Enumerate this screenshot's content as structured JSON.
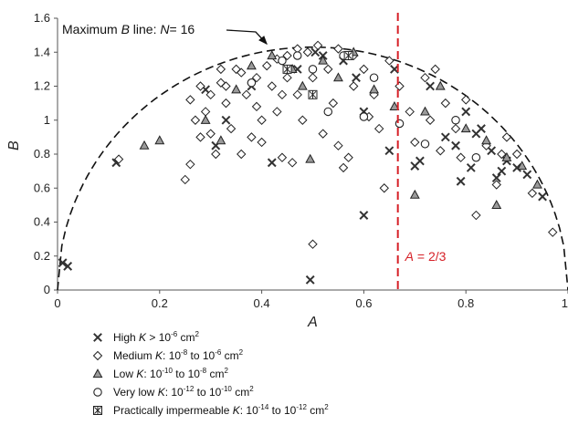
{
  "chart_data": {
    "type": "scatter",
    "xlabel": "A",
    "ylabel": "B",
    "xlim": [
      0,
      1
    ],
    "ylim": [
      0,
      1.6
    ],
    "x_ticks": [
      "0",
      "0.2",
      "0.4",
      "0.6",
      "0.8",
      "1"
    ],
    "y_ticks": [
      "0",
      "0.2",
      "0.4",
      "0.6",
      "0.8",
      "1",
      "1.2",
      "1.4",
      "1.6"
    ],
    "grid": false,
    "legend_position": "bottom-left",
    "max_line": {
      "label_prefix": "Maximum ",
      "label_var": "B",
      "label_mid": " line: ",
      "label_n": "N",
      "label_suffix": "= 16",
      "style": "dashed",
      "color": "#111111",
      "peak_B": 1.43
    },
    "threshold_line": {
      "x": 0.6667,
      "label_var": "A",
      "label_rest": " = 2/3",
      "style": "dashed",
      "color": "#d62027"
    },
    "series": [
      {
        "name_prefix": "High ",
        "name_var": "K",
        "name_rel": " > 10",
        "name_exp1": "-6",
        "name_tail": " cm",
        "name_exp2": "2",
        "marker": "x",
        "points": [
          [
            0.01,
            0.16
          ],
          [
            0.02,
            0.14
          ],
          [
            0.115,
            0.75
          ],
          [
            0.31,
            0.85
          ],
          [
            0.33,
            1.0
          ],
          [
            0.42,
            0.75
          ],
          [
            0.47,
            1.3
          ],
          [
            0.495,
            0.06
          ],
          [
            0.505,
            1.4
          ],
          [
            0.52,
            1.38
          ],
          [
            0.56,
            1.35
          ],
          [
            0.585,
            1.25
          ],
          [
            0.6,
            0.44
          ],
          [
            0.6,
            1.05
          ],
          [
            0.65,
            0.82
          ],
          [
            0.66,
            1.3
          ],
          [
            0.7,
            0.73
          ],
          [
            0.71,
            0.76
          ],
          [
            0.73,
            1.2
          ],
          [
            0.76,
            0.9
          ],
          [
            0.78,
            0.85
          ],
          [
            0.79,
            0.64
          ],
          [
            0.8,
            1.05
          ],
          [
            0.81,
            0.72
          ],
          [
            0.82,
            0.92
          ],
          [
            0.83,
            0.95
          ],
          [
            0.85,
            0.82
          ],
          [
            0.86,
            0.66
          ],
          [
            0.87,
            0.7
          ],
          [
            0.88,
            0.76
          ],
          [
            0.9,
            0.72
          ],
          [
            0.92,
            0.68
          ],
          [
            0.95,
            0.55
          ],
          [
            0.29,
            1.18
          ],
          [
            0.38,
            1.2
          ]
        ]
      },
      {
        "name_prefix": "Medium ",
        "name_var": "K",
        "name_rel": ": 10",
        "name_exp1": "-8",
        "name_tail": " to 10",
        "name_exp2": "-6",
        "name_tail2": " cm",
        "name_exp3": "2",
        "marker": "diamond",
        "points": [
          [
            0.12,
            0.77
          ],
          [
            0.25,
            0.65
          ],
          [
            0.26,
            0.74
          ],
          [
            0.26,
            1.12
          ],
          [
            0.27,
            1.0
          ],
          [
            0.28,
            0.9
          ],
          [
            0.3,
            1.15
          ],
          [
            0.3,
            0.92
          ],
          [
            0.31,
            0.8
          ],
          [
            0.32,
            1.22
          ],
          [
            0.33,
            1.1
          ],
          [
            0.34,
            0.95
          ],
          [
            0.35,
            1.3
          ],
          [
            0.36,
            0.8
          ],
          [
            0.37,
            1.15
          ],
          [
            0.38,
            0.9
          ],
          [
            0.39,
            1.25
          ],
          [
            0.4,
            1.0
          ],
          [
            0.4,
            0.87
          ],
          [
            0.41,
            1.32
          ],
          [
            0.42,
            1.2
          ],
          [
            0.43,
            1.05
          ],
          [
            0.44,
            0.78
          ],
          [
            0.45,
            1.38
          ],
          [
            0.45,
            1.25
          ],
          [
            0.46,
            0.75
          ],
          [
            0.47,
            1.15
          ],
          [
            0.48,
            1.0
          ],
          [
            0.49,
            1.4
          ],
          [
            0.5,
            0.27
          ],
          [
            0.5,
            1.25
          ],
          [
            0.52,
            0.92
          ],
          [
            0.53,
            1.3
          ],
          [
            0.54,
            1.1
          ],
          [
            0.55,
            1.42
          ],
          [
            0.56,
            0.72
          ],
          [
            0.57,
            0.78
          ],
          [
            0.58,
            1.2
          ],
          [
            0.6,
            1.3
          ],
          [
            0.62,
            1.15
          ],
          [
            0.63,
            0.95
          ],
          [
            0.64,
            0.6
          ],
          [
            0.65,
            1.35
          ],
          [
            0.67,
            1.2
          ],
          [
            0.69,
            1.05
          ],
          [
            0.7,
            0.87
          ],
          [
            0.72,
            1.25
          ],
          [
            0.73,
            1.0
          ],
          [
            0.75,
            0.82
          ],
          [
            0.76,
            1.1
          ],
          [
            0.78,
            0.95
          ],
          [
            0.8,
            1.12
          ],
          [
            0.82,
            0.44
          ],
          [
            0.84,
            0.85
          ],
          [
            0.86,
            0.62
          ],
          [
            0.88,
            0.9
          ],
          [
            0.9,
            0.8
          ],
          [
            0.93,
            0.57
          ],
          [
            0.97,
            0.34
          ],
          [
            0.29,
            1.05
          ],
          [
            0.33,
            1.2
          ],
          [
            0.36,
            1.28
          ],
          [
            0.43,
            1.36
          ],
          [
            0.47,
            1.42
          ],
          [
            0.51,
            1.44
          ],
          [
            0.58,
            1.38
          ],
          [
            0.61,
            1.02
          ],
          [
            0.74,
            1.3
          ],
          [
            0.79,
            0.78
          ],
          [
            0.87,
            0.8
          ],
          [
            0.55,
            0.85
          ],
          [
            0.44,
            1.15
          ],
          [
            0.39,
            1.08
          ],
          [
            0.32,
            1.3
          ],
          [
            0.28,
            1.2
          ]
        ]
      },
      {
        "name_prefix": "Low ",
        "name_var": "K",
        "name_rel": ": 10",
        "name_exp1": "-10",
        "name_tail": " to 10",
        "name_exp2": "-8",
        "name_tail2": " cm",
        "name_exp3": "2",
        "marker": "triangle",
        "points": [
          [
            0.17,
            0.85
          ],
          [
            0.2,
            0.88
          ],
          [
            0.29,
            1.0
          ],
          [
            0.32,
            0.88
          ],
          [
            0.35,
            1.18
          ],
          [
            0.38,
            1.32
          ],
          [
            0.42,
            1.38
          ],
          [
            0.46,
            1.3
          ],
          [
            0.495,
            0.77
          ],
          [
            0.52,
            1.35
          ],
          [
            0.55,
            1.25
          ],
          [
            0.58,
            1.4
          ],
          [
            0.62,
            1.18
          ],
          [
            0.7,
            0.56
          ],
          [
            0.72,
            1.05
          ],
          [
            0.75,
            1.2
          ],
          [
            0.8,
            0.95
          ],
          [
            0.84,
            0.88
          ],
          [
            0.86,
            0.5
          ],
          [
            0.88,
            0.78
          ],
          [
            0.91,
            0.73
          ],
          [
            0.94,
            0.62
          ],
          [
            0.48,
            1.2
          ],
          [
            0.66,
            1.08
          ]
        ]
      },
      {
        "name_prefix": "Very low ",
        "name_var": "K",
        "name_rel": ": 10",
        "name_exp1": "-12",
        "name_tail": " to 10",
        "name_exp2": "-10",
        "name_tail2": " cm",
        "name_exp3": "2",
        "marker": "circle",
        "points": [
          [
            0.38,
            1.22
          ],
          [
            0.44,
            1.35
          ],
          [
            0.5,
            1.3
          ],
          [
            0.56,
            1.38
          ],
          [
            0.6,
            1.02
          ],
          [
            0.62,
            1.25
          ],
          [
            0.67,
            0.98
          ],
          [
            0.72,
            0.86
          ],
          [
            0.78,
            1.0
          ],
          [
            0.82,
            0.78
          ],
          [
            0.53,
            1.05
          ],
          [
            0.47,
            1.38
          ]
        ]
      },
      {
        "name_prefix": "Practically impermeable ",
        "name_var": "K",
        "name_rel": ": 10",
        "name_exp1": "-14",
        "name_tail": " to 10",
        "name_exp2": "-12",
        "name_tail2": " cm",
        "name_exp3": "2",
        "marker": "star-box",
        "points": [
          [
            0.5,
            1.15
          ],
          [
            0.57,
            1.38
          ],
          [
            0.45,
            1.3
          ]
        ]
      }
    ]
  }
}
